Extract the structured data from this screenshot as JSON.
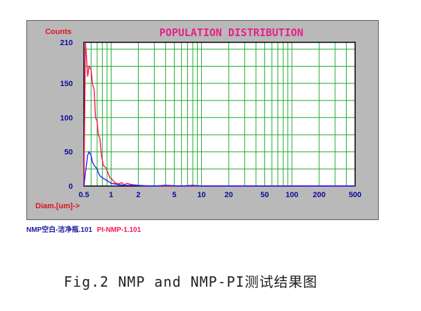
{
  "chart_data": {
    "type": "line",
    "title": "POPULATION DISTRIBUTION",
    "ylabel": "Counts",
    "xlabel": "Diam.[um]->",
    "x_scale": "log",
    "xlim": [
      0.5,
      500
    ],
    "ylim": [
      0,
      210
    ],
    "y_ticks": [
      0,
      50,
      100,
      150,
      210
    ],
    "x_ticks": [
      0.5,
      1,
      2,
      5,
      10,
      20,
      50,
      100,
      200,
      500
    ],
    "grid": true,
    "series": [
      {
        "name": "PI-NMP-1.101",
        "color": "#ff1050",
        "points": [
          [
            0.5,
            0
          ],
          [
            0.52,
            210
          ],
          [
            0.53,
            195
          ],
          [
            0.55,
            160
          ],
          [
            0.57,
            175
          ],
          [
            0.6,
            170
          ],
          [
            0.62,
            150
          ],
          [
            0.65,
            140
          ],
          [
            0.67,
            100
          ],
          [
            0.7,
            95
          ],
          [
            0.72,
            75
          ],
          [
            0.75,
            70
          ],
          [
            0.78,
            45
          ],
          [
            0.82,
            30
          ],
          [
            0.87,
            27
          ],
          [
            0.92,
            20
          ],
          [
            0.97,
            12
          ],
          [
            1.02,
            10
          ],
          [
            1.1,
            5
          ],
          [
            1.2,
            3
          ],
          [
            1.3,
            5
          ],
          [
            1.4,
            2
          ],
          [
            1.5,
            4
          ],
          [
            1.7,
            2
          ],
          [
            2.0,
            1
          ],
          [
            2.5,
            0
          ],
          [
            500,
            0
          ]
        ]
      },
      {
        "name": "NMP空白-洁净瓶.101",
        "color": "#2020ff",
        "points": [
          [
            0.5,
            0
          ],
          [
            0.52,
            20
          ],
          [
            0.55,
            45
          ],
          [
            0.57,
            50
          ],
          [
            0.6,
            45
          ],
          [
            0.62,
            35
          ],
          [
            0.65,
            30
          ],
          [
            0.7,
            25
          ],
          [
            0.72,
            20
          ],
          [
            0.75,
            15
          ],
          [
            0.8,
            12
          ],
          [
            0.85,
            10
          ],
          [
            0.9,
            8
          ],
          [
            0.95,
            6
          ],
          [
            1.0,
            4
          ],
          [
            1.1,
            3
          ],
          [
            1.2,
            2
          ],
          [
            1.4,
            1
          ],
          [
            1.8,
            1
          ],
          [
            3.0,
            0
          ],
          [
            4.0,
            1
          ],
          [
            6.0,
            0
          ],
          [
            8.0,
            1
          ],
          [
            10,
            0
          ],
          [
            500,
            0
          ]
        ]
      }
    ]
  },
  "legend": {
    "items": [
      {
        "label": "NMP空白-洁净瓶.101",
        "color": "#1a1aa0"
      },
      {
        "label": "PI-NMP-1.101",
        "color": "#ff1050"
      }
    ]
  },
  "caption": "Fig.2 NMP and NMP-PI测试结果图"
}
